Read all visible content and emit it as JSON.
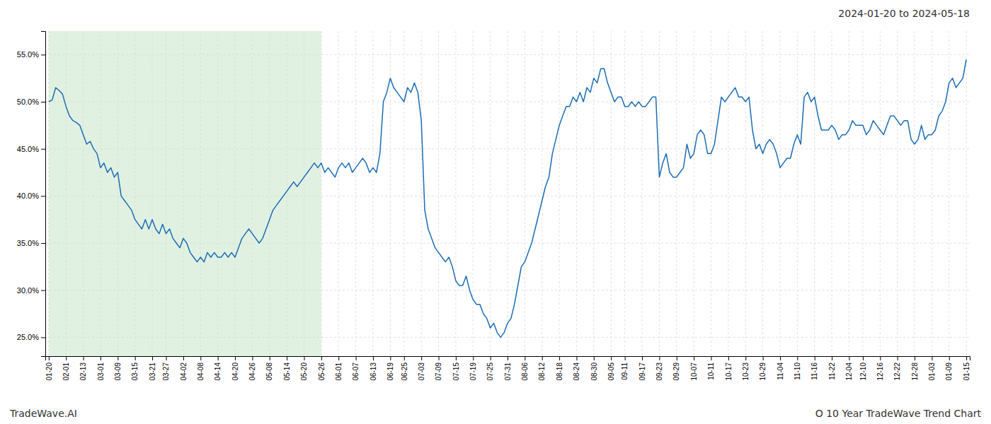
{
  "chart_data": {
    "type": "line",
    "title": "2024-01-20 to 2024-05-18",
    "annotations": [
      "TradeWave.AI",
      "O 10 Year TradeWave Trend Chart"
    ],
    "color": "#1b6cb5",
    "grid": true,
    "ylim": [
      23.0,
      57.5
    ],
    "yticks": [
      {
        "value": 25.0,
        "label": "25.0%"
      },
      {
        "value": 30.0,
        "label": "30.0%"
      },
      {
        "value": 35.0,
        "label": "35.0%"
      },
      {
        "value": 40.0,
        "label": "40.0%"
      },
      {
        "value": 45.0,
        "label": "45.0%"
      },
      {
        "value": 50.0,
        "label": "50.0%"
      },
      {
        "value": 55.0,
        "label": "55.0%"
      }
    ],
    "highlight": {
      "from": "01-20",
      "to": "05-26",
      "color": "#c8e6c9"
    },
    "categories": [
      "01-20",
      null,
      null,
      null,
      null,
      "02-01",
      null,
      null,
      null,
      null,
      "02-13",
      null,
      null,
      null,
      null,
      "03-01",
      null,
      null,
      null,
      null,
      "03-09",
      null,
      null,
      null,
      null,
      "03-15",
      null,
      null,
      null,
      null,
      "03-21",
      null,
      null,
      null,
      "03-27",
      null,
      null,
      null,
      null,
      "04-02",
      null,
      null,
      null,
      null,
      "04-08",
      null,
      null,
      null,
      null,
      "04-14",
      null,
      null,
      null,
      null,
      "04-20",
      null,
      null,
      null,
      null,
      "04-26",
      null,
      null,
      null,
      null,
      "05-08",
      null,
      null,
      null,
      null,
      "05-14",
      null,
      null,
      null,
      null,
      "05-20",
      null,
      null,
      null,
      null,
      "05-26",
      null,
      null,
      null,
      null,
      "06-01",
      null,
      null,
      null,
      null,
      "06-07",
      null,
      null,
      null,
      null,
      "06-13",
      null,
      null,
      null,
      null,
      "06-19",
      null,
      null,
      null,
      "06-25",
      null,
      null,
      null,
      null,
      "07-03",
      null,
      null,
      null,
      null,
      "07-09",
      null,
      null,
      null,
      null,
      "07-15",
      null,
      null,
      null,
      null,
      "07-19",
      null,
      null,
      null,
      null,
      "07-25",
      null,
      null,
      null,
      null,
      "07-31",
      null,
      null,
      null,
      null,
      "08-06",
      null,
      null,
      null,
      null,
      "08-12",
      null,
      null,
      null,
      null,
      "08-18",
      null,
      null,
      null,
      null,
      "08-24",
      null,
      null,
      null,
      null,
      "08-30",
      null,
      null,
      null,
      null,
      "09-05",
      null,
      null,
      null,
      "09-11",
      null,
      null,
      null,
      null,
      "09-17",
      null,
      null,
      null,
      null,
      "09-23",
      null,
      null,
      null,
      null,
      "09-29",
      null,
      null,
      null,
      null,
      "10-07",
      null,
      null,
      null,
      null,
      "10-11",
      null,
      null,
      null,
      null,
      "10-17",
      null,
      null,
      null,
      null,
      "10-23",
      null,
      null,
      null,
      null,
      "10-29",
      null,
      null,
      null,
      null,
      "11-04",
      null,
      null,
      null,
      null,
      "11-10",
      null,
      null,
      null,
      null,
      "11-16",
      null,
      null,
      null,
      null,
      "11-22",
      null,
      null,
      null,
      null,
      "12-04",
      null,
      null,
      null,
      "12-10",
      null,
      null,
      null,
      null,
      "12-16",
      null,
      null,
      null,
      null,
      "12-22",
      null,
      null,
      null,
      null,
      "12-28",
      null,
      null,
      null,
      null,
      "01-03",
      null,
      null,
      null,
      null,
      "01-09",
      null,
      null,
      null,
      null,
      "01-15"
    ],
    "values": [
      50.0,
      50.2,
      51.5,
      51.2,
      50.8,
      49.5,
      48.5,
      48.0,
      47.8,
      47.5,
      46.5,
      45.5,
      45.8,
      45.0,
      44.5,
      43.0,
      43.5,
      42.5,
      43.0,
      42.0,
      42.5,
      40.0,
      39.5,
      39.0,
      38.5,
      37.5,
      37.0,
      36.5,
      37.5,
      36.5,
      37.5,
      36.5,
      36.0,
      37.0,
      36.0,
      36.5,
      35.5,
      35.0,
      34.5,
      35.5,
      35.0,
      34.0,
      33.5,
      33.0,
      33.5,
      33.0,
      34.0,
      33.5,
      34.0,
      33.5,
      33.5,
      34.0,
      33.5,
      34.0,
      33.5,
      34.5,
      35.5,
      36.0,
      36.5,
      36.0,
      35.5,
      35.0,
      35.5,
      36.5,
      37.5,
      38.5,
      39.0,
      39.5,
      40.0,
      40.5,
      41.0,
      41.5,
      41.0,
      41.5,
      42.0,
      42.5,
      43.0,
      43.5,
      43.0,
      43.5,
      42.5,
      43.0,
      42.5,
      42.0,
      43.0,
      43.5,
      43.0,
      43.5,
      42.5,
      43.0,
      43.5,
      44.0,
      43.5,
      42.5,
      43.0,
      42.5,
      44.5,
      50.0,
      51.0,
      52.5,
      51.5,
      51.0,
      50.5,
      50.0,
      51.5,
      51.0,
      52.0,
      51.0,
      48.0,
      38.5,
      36.5,
      35.5,
      34.5,
      34.0,
      33.5,
      33.0,
      33.5,
      32.5,
      31.0,
      30.5,
      30.5,
      31.5,
      30.0,
      29.0,
      28.5,
      28.5,
      27.5,
      27.0,
      26.0,
      26.5,
      25.5,
      25.0,
      25.5,
      26.5,
      27.0,
      28.5,
      30.5,
      32.5,
      33.0,
      34.0,
      35.0,
      36.5,
      38.0,
      39.5,
      41.0,
      42.0,
      44.5,
      46.0,
      47.5,
      48.5,
      49.5,
      49.5,
      50.5,
      50.0,
      51.0,
      50.0,
      51.5,
      51.0,
      52.5,
      52.0,
      53.5,
      53.5,
      52.0,
      51.0,
      50.0,
      50.5,
      50.5,
      49.5,
      49.5,
      50.0,
      49.5,
      50.0,
      49.5,
      49.5,
      50.0,
      50.5,
      50.5,
      42.0,
      43.5,
      44.5,
      42.5,
      42.0,
      42.0,
      42.5,
      43.0,
      45.5,
      44.0,
      44.5,
      46.5,
      47.0,
      46.5,
      44.5,
      44.5,
      45.5,
      48.0,
      50.5,
      50.0,
      50.5,
      51.0,
      51.5,
      50.5,
      50.5,
      50.0,
      50.5,
      47.0,
      45.0,
      45.5,
      44.5,
      45.5,
      46.0,
      45.5,
      44.5,
      43.0,
      43.5,
      44.0,
      44.0,
      45.5,
      46.5,
      45.5,
      50.5,
      51.0,
      50.0,
      50.5,
      48.5,
      47.0,
      47.0,
      47.0,
      47.5,
      47.0,
      46.0,
      46.5,
      46.5,
      47.0,
      48.0,
      47.5,
      47.5,
      47.5,
      46.5,
      47.0,
      48.0,
      47.5,
      47.0,
      46.5,
      47.5,
      48.5,
      48.5,
      48.0,
      47.5,
      48.0,
      48.0,
      46.0,
      45.5,
      46.0,
      47.5,
      46.0,
      46.5,
      46.5,
      47.0,
      48.5,
      49.0,
      50.0,
      52.0,
      52.5,
      51.5,
      52.0,
      52.5,
      54.5
    ]
  }
}
